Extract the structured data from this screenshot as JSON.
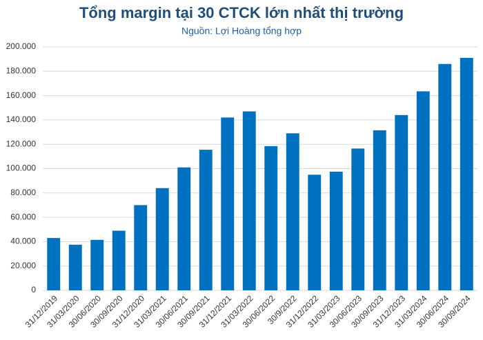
{
  "chart_data": {
    "type": "bar",
    "title": "Tổng margin tại 30 CTCK lớn nhất thị trường",
    "subtitle": "Nguồn: Lợi Hoàng tổng hợp",
    "categories": [
      "31/12/2019",
      "31/03/2020",
      "30/06/2020",
      "30/09/2020",
      "31/12/2020",
      "31/03/2021",
      "30/06/2021",
      "30/09/2021",
      "31/12/2021",
      "31/03/2022",
      "30/06/2022",
      "30/9/2022",
      "31/12/2022",
      "31/03/2023",
      "30/06/2023",
      "30/09/2023",
      "31/12/2023",
      "31/03/2024",
      "30/06/2024",
      "30/09/2024"
    ],
    "values": [
      43000,
      37500,
      41500,
      49000,
      70000,
      84000,
      101000,
      115500,
      142000,
      147000,
      118500,
      129000,
      95000,
      97500,
      116500,
      131500,
      144000,
      163500,
      186000,
      191000
    ],
    "color": "#0070c0",
    "ylim": [
      0,
      200000
    ],
    "yticks": [
      0,
      {
        "value": 20000,
        "label": "20.000"
      },
      {
        "value": 40000,
        "label": "40.000"
      },
      {
        "value": 60000,
        "label": "60.000"
      },
      {
        "value": 80000,
        "label": "80.000"
      },
      {
        "value": 100000,
        "label": "100.000"
      },
      {
        "value": 120000,
        "label": "120.000"
      },
      {
        "value": 140000,
        "label": "140.000"
      },
      {
        "value": 160000,
        "label": "160.000"
      },
      {
        "value": 180000,
        "label": "180.000"
      },
      {
        "value": 200000,
        "label": "200.000"
      }
    ],
    "grid": true
  }
}
